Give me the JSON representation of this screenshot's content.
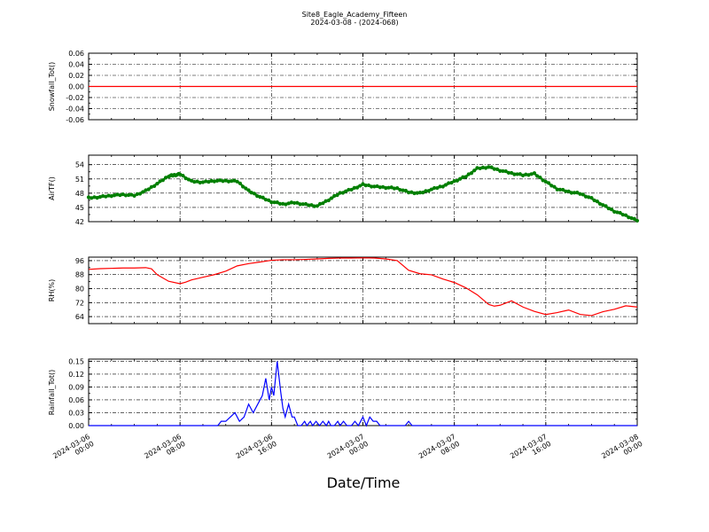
{
  "figure": {
    "title": "Site8_Eagle_Academy_Fifteen",
    "subtitle": "2024-03-08 - (2024-068)",
    "xlabel": "Date/Time"
  },
  "x_ticks": [
    {
      "t": 0,
      "line1": "2024-03-06",
      "line2": "00:00"
    },
    {
      "t": 8,
      "line1": "2024-03-06",
      "line2": "08:00"
    },
    {
      "t": 16,
      "line1": "2024-03-06",
      "line2": "16:00"
    },
    {
      "t": 24,
      "line1": "2024-03-07",
      "line2": "00:00"
    },
    {
      "t": 32,
      "line1": "2024-03-07",
      "line2": "08:00"
    },
    {
      "t": 40,
      "line1": "2024-03-07",
      "line2": "16:00"
    },
    {
      "t": 48,
      "line1": "2024-03-08",
      "line2": "00:00"
    }
  ],
  "chart_data": [
    {
      "type": "line",
      "ylabel": "Snowfall_Tot()",
      "color": "#ff0000",
      "ylim": [
        -0.06,
        0.06
      ],
      "yticks": [
        "0.06",
        "0.04",
        "0.02",
        "0.00",
        "-0.02",
        "-0.04",
        "-0.06"
      ],
      "ytick_values": [
        0.06,
        0.04,
        0.02,
        0.0,
        -0.02,
        -0.04,
        -0.06
      ],
      "grid": true,
      "x_hours": [
        0,
        48
      ],
      "y": [
        0.0,
        0.0
      ]
    },
    {
      "type": "scatter",
      "ylabel": "AirTF()",
      "color": "#007f00",
      "ylim": [
        42,
        56
      ],
      "yticks": [
        "54",
        "51",
        "48",
        "45",
        "42"
      ],
      "ytick_values": [
        54,
        51,
        48,
        45,
        42
      ],
      "grid": true,
      "x_hours": [
        0,
        1,
        2,
        3,
        4,
        5,
        6,
        7,
        7.5,
        8,
        9,
        10,
        11,
        12,
        13,
        14,
        15,
        16,
        17,
        18,
        19,
        20,
        21,
        22,
        23,
        24,
        25,
        26,
        27,
        28,
        29,
        30,
        31,
        32,
        33,
        34,
        35,
        36,
        37,
        38,
        39,
        40,
        41,
        42,
        43,
        44,
        45,
        46,
        47,
        48
      ],
      "y": [
        47.0,
        47.2,
        47.5,
        47.7,
        47.5,
        48.5,
        50.0,
        51.6,
        51.8,
        52.0,
        50.5,
        50.3,
        50.6,
        50.6,
        50.5,
        48.5,
        47.2,
        46.2,
        45.7,
        46.0,
        45.6,
        45.3,
        46.6,
        48.0,
        48.8,
        49.8,
        49.4,
        49.2,
        49.0,
        48.2,
        48.0,
        48.8,
        49.5,
        50.5,
        51.5,
        53.2,
        53.5,
        52.8,
        52.2,
        51.8,
        52.1,
        50.4,
        48.9,
        48.3,
        47.9,
        46.9,
        45.5,
        44.2,
        43.3,
        42.2
      ]
    },
    {
      "type": "line",
      "ylabel": "RH(%)",
      "color": "#ff0000",
      "ylim": [
        60,
        98
      ],
      "yticks": [
        "96",
        "88",
        "80",
        "72",
        "64"
      ],
      "ytick_values": [
        96,
        88,
        80,
        72,
        64
      ],
      "grid": true,
      "x_hours": [
        0,
        1,
        3,
        4,
        5,
        5.5,
        6,
        7,
        8,
        8.5,
        9,
        10,
        11,
        12,
        13,
        14,
        15,
        16,
        17,
        18,
        19,
        20,
        21,
        22,
        23,
        24,
        25,
        26,
        27,
        28,
        29,
        30,
        31,
        32,
        33,
        34,
        35,
        35.5,
        36,
        37,
        38,
        39,
        40,
        41,
        42,
        43,
        44,
        45,
        46,
        47,
        48
      ],
      "y": [
        91,
        91.4,
        91.8,
        91.8,
        92,
        91.3,
        88,
        84.2,
        82.8,
        83.7,
        85,
        86.5,
        88,
        90,
        93,
        94.3,
        95.2,
        96.2,
        96.5,
        96.5,
        96.7,
        97,
        97.3,
        97.5,
        97.5,
        97.6,
        97.5,
        97,
        96,
        90.5,
        88.5,
        87.9,
        85.5,
        83.5,
        80.5,
        76.5,
        71,
        70,
        70.5,
        73,
        69.5,
        67,
        65.2,
        66.3,
        67.8,
        65.3,
        64.6,
        66.8,
        68.2,
        70.2,
        69.5
      ]
    },
    {
      "type": "line",
      "ylabel": "Rainfall_Tot()",
      "color": "#0000ff",
      "ylim": [
        0,
        0.155
      ],
      "yticks": [
        "0.15",
        "0.12",
        "0.09",
        "0.06",
        "0.03",
        "0.00"
      ],
      "ytick_values": [
        0.15,
        0.12,
        0.09,
        0.06,
        0.03,
        0.0
      ],
      "grid": true,
      "x_hours": [
        0,
        11.3,
        11.6,
        12.0,
        12.4,
        12.8,
        13.2,
        13.6,
        14.0,
        14.4,
        14.8,
        15.0,
        15.2,
        15.5,
        15.8,
        16.0,
        16.2,
        16.5,
        16.8,
        17.0,
        17.2,
        17.5,
        17.8,
        18.0,
        18.3,
        18.6,
        18.9,
        19.1,
        19.4,
        19.6,
        19.9,
        20.2,
        20.5,
        20.8,
        21.0,
        21.2,
        21.5,
        21.8,
        22.0,
        22.3,
        22.6,
        23.0,
        23.3,
        23.6,
        24.0,
        24.3,
        24.6,
        24.9,
        25.2,
        25.5,
        25.8,
        27.7,
        28.0,
        28.3,
        48
      ],
      "y": [
        0,
        0,
        0.01,
        0.01,
        0.02,
        0.03,
        0.01,
        0.02,
        0.05,
        0.03,
        0.05,
        0.06,
        0.07,
        0.11,
        0.06,
        0.09,
        0.07,
        0.15,
        0.08,
        0.04,
        0.02,
        0.05,
        0.02,
        0.02,
        0.0,
        0.0,
        0.01,
        0.0,
        0.01,
        0.0,
        0.01,
        0.0,
        0.01,
        0.0,
        0.01,
        0.0,
        0.0,
        0.01,
        0.0,
        0.01,
        0.0,
        0.0,
        0.01,
        0.0,
        0.02,
        0.0,
        0.02,
        0.01,
        0.01,
        0.0,
        0.0,
        0.0,
        0.01,
        0.0,
        0.0
      ]
    }
  ]
}
